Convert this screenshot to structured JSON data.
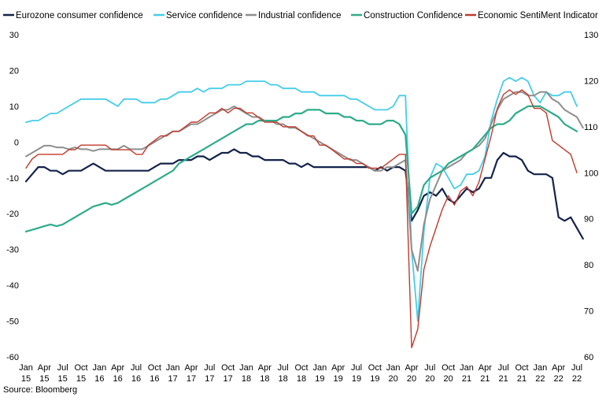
{
  "source": "Source: Bloomberg",
  "chart_data": {
    "type": "line",
    "x_labels": [
      [
        "Jan",
        "15"
      ],
      [
        "Apr",
        "15"
      ],
      [
        "Jul",
        "15"
      ],
      [
        "Oct",
        "15"
      ],
      [
        "Jan",
        "16"
      ],
      [
        "Apr",
        "16"
      ],
      [
        "Jul",
        "16"
      ],
      [
        "Oct",
        "16"
      ],
      [
        "Jan",
        "17"
      ],
      [
        "Apr",
        "17"
      ],
      [
        "Jul",
        "17"
      ],
      [
        "Oct",
        "17"
      ],
      [
        "Jan",
        "18"
      ],
      [
        "Apr",
        "18"
      ],
      [
        "Jul",
        "18"
      ],
      [
        "Oct",
        "18"
      ],
      [
        "Jan",
        "19"
      ],
      [
        "Apr",
        "19"
      ],
      [
        "Jul",
        "19"
      ],
      [
        "Oct",
        "19"
      ],
      [
        "Jan",
        "20"
      ],
      [
        "Apr",
        "20"
      ],
      [
        "Jul",
        "20"
      ],
      [
        "Oct",
        "20"
      ],
      [
        "Jan",
        "21"
      ],
      [
        "Apr",
        "21"
      ],
      [
        "Jul",
        "21"
      ],
      [
        "Oct",
        "21"
      ],
      [
        "Jan",
        "22"
      ],
      [
        "Apr",
        "22"
      ],
      [
        "Jul",
        "22"
      ]
    ],
    "y_left": {
      "min": -60,
      "max": 30,
      "ticks": [
        30,
        20,
        10,
        0,
        -10,
        -20,
        -30,
        -40,
        -50,
        -60
      ]
    },
    "y_right": {
      "min": 60,
      "max": 130,
      "ticks": [
        130,
        120,
        110,
        100,
        90,
        80,
        70,
        60
      ]
    },
    "grid": false,
    "legend_position": "top",
    "series": [
      {
        "name": "Eurozone consumer confidence",
        "axis": "left",
        "color": "#14234b",
        "width": 2.2,
        "values": [
          -11,
          -9,
          -7,
          -7,
          -8,
          -8,
          -9,
          -8,
          -8,
          -8,
          -7,
          -6,
          -7,
          -8,
          -8,
          -8,
          -8,
          -8,
          -8,
          -8,
          -8,
          -7,
          -6,
          -6,
          -6,
          -5,
          -5,
          -5,
          -4,
          -4,
          -5,
          -4,
          -3,
          -3,
          -2,
          -3,
          -3,
          -4,
          -4,
          -5,
          -5,
          -5,
          -5,
          -6,
          -6,
          -7,
          -6,
          -7,
          -7,
          -7,
          -7,
          -7,
          -7,
          -7,
          -7,
          -7,
          -7,
          -8,
          -7,
          -8,
          -7,
          -7,
          -8,
          -22,
          -19,
          -15,
          -14,
          -15,
          -13,
          -16,
          -17,
          -15,
          -13,
          -14,
          -13,
          -10,
          -10,
          -5,
          -3,
          -4,
          -4,
          -5,
          -8,
          -9,
          -9,
          -9,
          -10,
          -21,
          -22,
          -21,
          -24,
          -27
        ]
      },
      {
        "name": "Service confidence",
        "axis": "left",
        "color": "#45cde8",
        "width": 1.8,
        "values": [
          5.5,
          6,
          6,
          7,
          8,
          8,
          9,
          10,
          11,
          12,
          12,
          12,
          12,
          12,
          11,
          10,
          12,
          12,
          12,
          11,
          11,
          11,
          12,
          12,
          13,
          14,
          14,
          14,
          15,
          14,
          15,
          15,
          15,
          16,
          16,
          16,
          17,
          17,
          17,
          17,
          16,
          16,
          15,
          15,
          15,
          14,
          14,
          14,
          13,
          13,
          13,
          13,
          13,
          12,
          12,
          11,
          10,
          9,
          9,
          9,
          10,
          13,
          13,
          -30,
          -50,
          -25,
          -10,
          -6,
          -7,
          -10,
          -13,
          -12,
          -9,
          -9,
          -8,
          -4,
          6,
          12,
          17,
          18,
          17,
          18,
          17,
          13,
          11,
          14,
          13,
          13,
          14,
          14,
          10
        ]
      },
      {
        "name": "Industrial confidence",
        "axis": "left",
        "color": "#8e8e8e",
        "width": 2,
        "values": [
          -4,
          -3,
          -2,
          -1,
          -1,
          -1.5,
          -1.5,
          -2,
          -1.5,
          -2,
          -2,
          -2.5,
          -2,
          -2,
          -2,
          -2,
          -1,
          -2,
          -2,
          -2,
          -1,
          0,
          1,
          2,
          3,
          3,
          4,
          5,
          5,
          6,
          7,
          8,
          9,
          9,
          10,
          9,
          8,
          7,
          7,
          6,
          6,
          5,
          5,
          4,
          4,
          3,
          2,
          1,
          0,
          -1,
          -2,
          -3,
          -4,
          -5,
          -5,
          -6,
          -7,
          -8,
          -8,
          -7,
          -7,
          -6,
          -5,
          -30,
          -36,
          -23,
          -16,
          -12,
          -8,
          -7,
          -6,
          -5,
          -3,
          -2,
          -1,
          1,
          5,
          9,
          12,
          13,
          14,
          14,
          13,
          13,
          14,
          14,
          12,
          11,
          9,
          8,
          7,
          4
        ]
      },
      {
        "name": "Construction Confidence",
        "axis": "left",
        "color": "#2eab8b",
        "width": 2.2,
        "values": [
          -25,
          -24.5,
          -24,
          -23.5,
          -23,
          -23.5,
          -23,
          -22,
          -21,
          -20,
          -19,
          -18,
          -17.5,
          -17,
          -17.5,
          -17,
          -16,
          -15,
          -14,
          -13,
          -12,
          -11,
          -10,
          -9,
          -8,
          -6,
          -5,
          -4,
          -3,
          -2,
          -1,
          0,
          1,
          2,
          3,
          4,
          5,
          5,
          6,
          6,
          6,
          6,
          7,
          7,
          8,
          8,
          9,
          9,
          9,
          8,
          8,
          8,
          7,
          7,
          6,
          6,
          5,
          5,
          5,
          6,
          6,
          5,
          2,
          -20,
          -18,
          -12,
          -10,
          -9,
          -8,
          -6,
          -5,
          -4,
          -3,
          -2,
          0,
          2,
          4,
          5,
          5,
          6,
          8,
          9,
          10,
          10,
          10,
          9,
          8,
          7,
          5,
          4,
          3
        ]
      },
      {
        "name": "Economic SentiMent Indicator",
        "axis": "right",
        "color": "#c0392b",
        "width": 1.4,
        "values": [
          101,
          103,
          104,
          104,
          104,
          104,
          104,
          105,
          105,
          106,
          106,
          106,
          106,
          106,
          105,
          105,
          105,
          105,
          104,
          104,
          106,
          107,
          108,
          108,
          109,
          109,
          110,
          111,
          111,
          112,
          113,
          113,
          114,
          113,
          114,
          114,
          113,
          113,
          112,
          111,
          111,
          111,
          110,
          110,
          110,
          109,
          108,
          108,
          106,
          106,
          105,
          104,
          103,
          103,
          102,
          102,
          101,
          101,
          101,
          102,
          103,
          104,
          104,
          62,
          66,
          79,
          84,
          88,
          92,
          95,
          93,
          96,
          97,
          95,
          98,
          103,
          108,
          114,
          117,
          118,
          117,
          118,
          117,
          114,
          114,
          113,
          107,
          106,
          105,
          104,
          100
        ]
      }
    ]
  }
}
